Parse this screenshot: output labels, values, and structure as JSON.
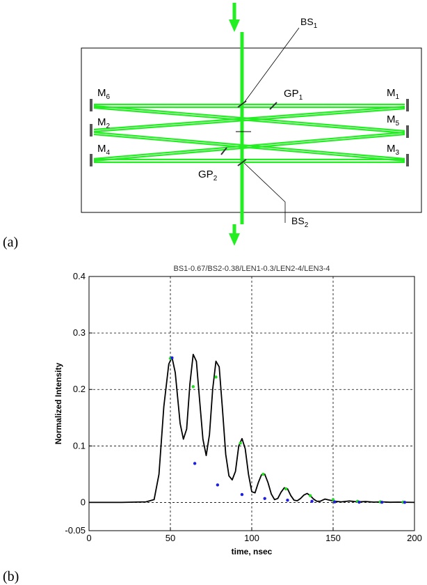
{
  "panel_a": {
    "label": "(a)",
    "labels": {
      "bs1": {
        "main": "BS",
        "sub": "1"
      },
      "bs2": {
        "main": "BS",
        "sub": "2"
      },
      "gp1": {
        "main": "GP",
        "sub": "1"
      },
      "gp2": {
        "main": "GP",
        "sub": "2"
      },
      "m1": {
        "main": "M",
        "sub": "1"
      },
      "m2": {
        "main": "M",
        "sub": "2"
      },
      "m3": {
        "main": "M",
        "sub": "3"
      },
      "m4": {
        "main": "M",
        "sub": "4"
      },
      "m5": {
        "main": "M",
        "sub": "5"
      },
      "m6": {
        "main": "M",
        "sub": "6"
      }
    },
    "colors": {
      "beam": "#22ee22",
      "frame": "#000000"
    }
  },
  "panel_b": {
    "label": "(b)"
  },
  "chart_data": {
    "type": "line",
    "title": "BS1-0.67/BS2-0.38/LEN1-0.3/LEN2-4/LEN3-4",
    "xlabel": "time, nsec",
    "ylabel": "Normalized Intensity",
    "xlim": [
      0,
      200
    ],
    "ylim": [
      -0.05,
      0.4
    ],
    "xticks": [
      0,
      50,
      100,
      150,
      200
    ],
    "yticks": [
      -0.05,
      0,
      0.1,
      0.2,
      0.3,
      0.4
    ],
    "xtick_labels": [
      "0",
      "50",
      "100",
      "150",
      "200"
    ],
    "ytick_labels": [
      "-0.05",
      "0",
      "0.1",
      "0.2",
      "0.3",
      "0.4"
    ],
    "grid": true,
    "series": [
      {
        "color": "#000000",
        "style": "line",
        "x": [
          0,
          20,
          35,
          40,
          43,
          46,
          49,
          51,
          53,
          56,
          58,
          60,
          62,
          64,
          66,
          68,
          70,
          72,
          74,
          76,
          78,
          80,
          82,
          84,
          86,
          88,
          90,
          92,
          94,
          96,
          98,
          100,
          102,
          104,
          106,
          108,
          110,
          112,
          114,
          116,
          118,
          120,
          122,
          124,
          126,
          128,
          130,
          132,
          134,
          136,
          138,
          140,
          142,
          145,
          148,
          151,
          155,
          160,
          165,
          170,
          175,
          180,
          185,
          190,
          200
        ],
        "y": [
          0,
          0,
          0.001,
          0.005,
          0.05,
          0.17,
          0.245,
          0.257,
          0.23,
          0.14,
          0.112,
          0.13,
          0.21,
          0.262,
          0.25,
          0.18,
          0.112,
          0.083,
          0.12,
          0.2,
          0.25,
          0.24,
          0.165,
          0.085,
          0.047,
          0.04,
          0.055,
          0.1,
          0.113,
          0.095,
          0.05,
          0.019,
          0.017,
          0.035,
          0.049,
          0.05,
          0.035,
          0.015,
          0.005,
          0.007,
          0.018,
          0.026,
          0.024,
          0.012,
          0.004,
          0.003,
          0.007,
          0.013,
          0.016,
          0.012,
          0.006,
          0.002,
          0.002,
          0.006,
          0.004,
          0.002,
          0.001,
          0.0025,
          0.001,
          0.0015,
          0.0005,
          0.001,
          0.0003,
          0.0005,
          0
        ]
      },
      {
        "color": "#22dd22",
        "style": "points",
        "x": [
          50,
          64,
          78,
          93,
          107,
          121,
          136,
          150,
          165,
          179,
          193
        ],
        "y": [
          0.255,
          0.205,
          0.222,
          0.105,
          0.05,
          0.024,
          0.012,
          0.005,
          0.002,
          0.001,
          0.0005
        ]
      },
      {
        "color": "#1f1fe0",
        "style": "points",
        "x": [
          51,
          65,
          79,
          94,
          108,
          122,
          137,
          151,
          166,
          180,
          194
        ],
        "y": [
          0.256,
          0.069,
          0.031,
          0.014,
          0.007,
          0.004,
          0.002,
          0.001,
          0.0005,
          0.0003,
          0.0002
        ]
      }
    ]
  }
}
